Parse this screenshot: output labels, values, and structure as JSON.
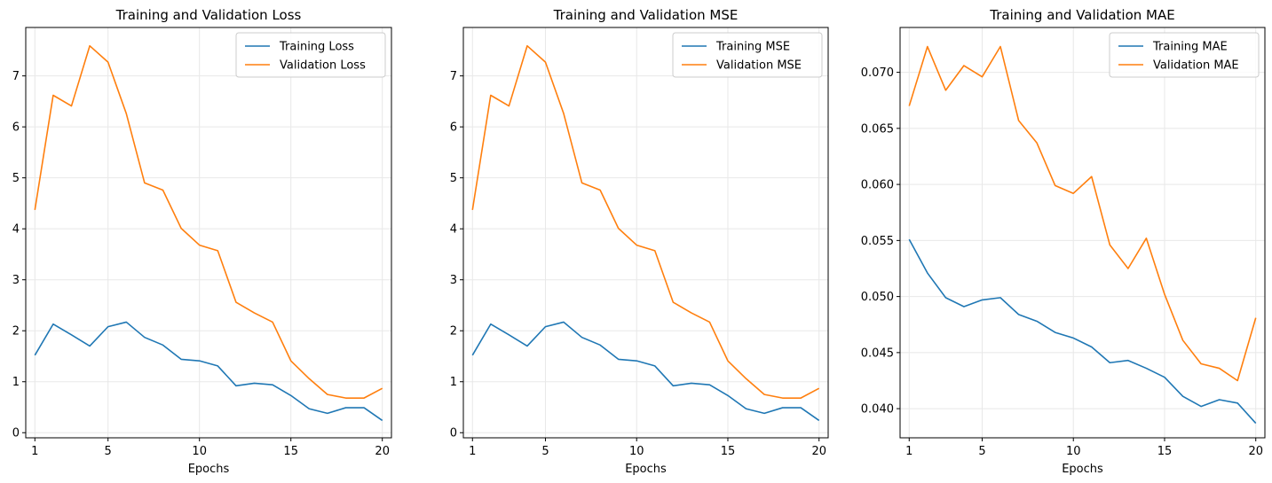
{
  "chart_data": [
    {
      "type": "line",
      "title": "Training and Validation Loss",
      "xlabel": "Epochs",
      "ylabel": "",
      "x": [
        1,
        2,
        3,
        4,
        5,
        6,
        7,
        8,
        9,
        10,
        11,
        12,
        13,
        14,
        15,
        16,
        17,
        18,
        19,
        20
      ],
      "xticks": [
        1,
        5,
        10,
        15,
        20
      ],
      "yticks": [
        0,
        1,
        2,
        3,
        4,
        5,
        6,
        7
      ],
      "ytick_decimals": 0,
      "xlim": [
        0.5,
        20.5
      ],
      "ylim": [
        -0.1,
        7.95
      ],
      "grid": true,
      "legend": "top-right",
      "series": [
        {
          "name": "Training Loss",
          "color": "#1f77b4",
          "values": [
            1.52,
            2.13,
            1.92,
            1.7,
            2.08,
            2.17,
            1.87,
            1.72,
            1.44,
            1.41,
            1.31,
            0.92,
            0.97,
            0.94,
            0.73,
            0.47,
            0.38,
            0.49,
            0.49,
            0.24
          ]
        },
        {
          "name": "Validation Loss",
          "color": "#ff7f0e",
          "values": [
            4.37,
            6.62,
            6.41,
            7.59,
            7.27,
            6.26,
            4.9,
            4.76,
            4.01,
            3.68,
            3.57,
            2.56,
            2.35,
            2.17,
            1.41,
            1.06,
            0.75,
            0.68,
            0.68,
            0.87
          ]
        }
      ]
    },
    {
      "type": "line",
      "title": "Training and Validation MSE",
      "xlabel": "Epochs",
      "ylabel": "",
      "x": [
        1,
        2,
        3,
        4,
        5,
        6,
        7,
        8,
        9,
        10,
        11,
        12,
        13,
        14,
        15,
        16,
        17,
        18,
        19,
        20
      ],
      "xticks": [
        1,
        5,
        10,
        15,
        20
      ],
      "yticks": [
        0,
        1,
        2,
        3,
        4,
        5,
        6,
        7
      ],
      "ytick_decimals": 0,
      "xlim": [
        0.5,
        20.5
      ],
      "ylim": [
        -0.1,
        7.95
      ],
      "grid": true,
      "legend": "top-right",
      "series": [
        {
          "name": "Training MSE",
          "color": "#1f77b4",
          "values": [
            1.52,
            2.13,
            1.92,
            1.7,
            2.08,
            2.17,
            1.87,
            1.72,
            1.44,
            1.41,
            1.31,
            0.92,
            0.97,
            0.94,
            0.73,
            0.47,
            0.38,
            0.49,
            0.49,
            0.24
          ]
        },
        {
          "name": "Validation MSE",
          "color": "#ff7f0e",
          "values": [
            4.37,
            6.62,
            6.41,
            7.59,
            7.27,
            6.26,
            4.9,
            4.76,
            4.01,
            3.68,
            3.57,
            2.56,
            2.35,
            2.17,
            1.41,
            1.06,
            0.75,
            0.68,
            0.68,
            0.87
          ]
        }
      ]
    },
    {
      "type": "line",
      "title": "Training and Validation MAE",
      "xlabel": "Epochs",
      "ylabel": "",
      "x": [
        1,
        2,
        3,
        4,
        5,
        6,
        7,
        8,
        9,
        10,
        11,
        12,
        13,
        14,
        15,
        16,
        17,
        18,
        19,
        20
      ],
      "xticks": [
        1,
        5,
        10,
        15,
        20
      ],
      "yticks": [
        0.04,
        0.045,
        0.05,
        0.055,
        0.06,
        0.065,
        0.07
      ],
      "ytick_decimals": 3,
      "xlim": [
        0.5,
        20.5
      ],
      "ylim": [
        0.0374,
        0.074
      ],
      "grid": true,
      "legend": "top-right",
      "series": [
        {
          "name": "Training MAE",
          "color": "#1f77b4",
          "values": [
            0.0551,
            0.0521,
            0.0499,
            0.0491,
            0.0497,
            0.0499,
            0.0484,
            0.0478,
            0.0468,
            0.0463,
            0.0455,
            0.0441,
            0.0443,
            0.0436,
            0.0428,
            0.0411,
            0.0402,
            0.0408,
            0.0405,
            0.0387
          ]
        },
        {
          "name": "Validation MAE",
          "color": "#ff7f0e",
          "values": [
            0.067,
            0.0723,
            0.0684,
            0.0706,
            0.0696,
            0.0723,
            0.0657,
            0.0637,
            0.0599,
            0.0592,
            0.0607,
            0.0546,
            0.0525,
            0.0552,
            0.0502,
            0.0461,
            0.044,
            0.0436,
            0.0425,
            0.0481
          ]
        }
      ]
    }
  ]
}
